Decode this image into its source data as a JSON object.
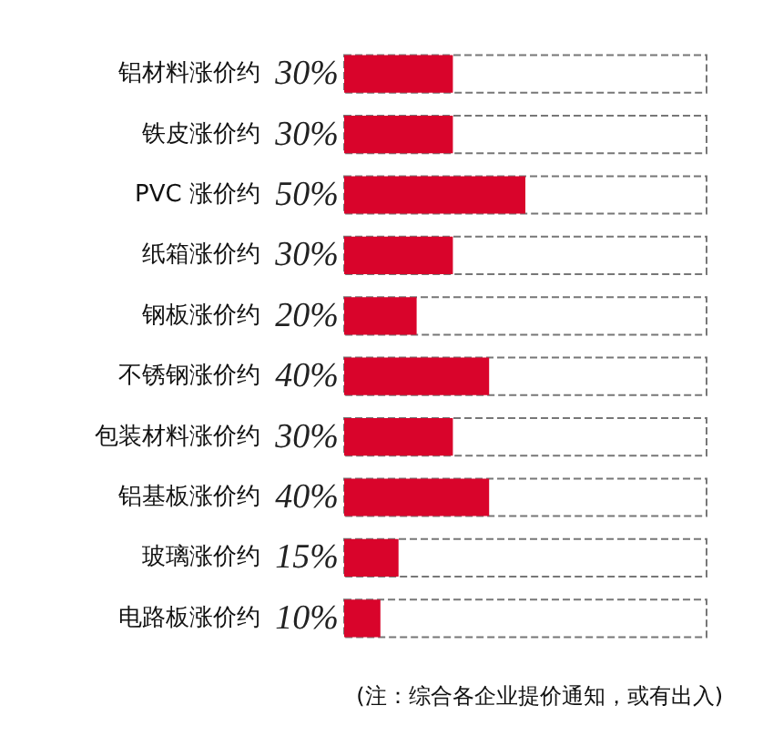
{
  "chart_data": {
    "type": "bar",
    "orientation": "horizontal",
    "categories": [
      "铝材料涨价约",
      "铁皮涨价约",
      "PVC 涨价约",
      "纸箱涨价约",
      "钢板涨价约",
      "不锈钢涨价约",
      "包装材料涨价约",
      "铝基板涨价约",
      "玻璃涨价约",
      "电路板涨价约"
    ],
    "values": [
      30,
      30,
      50,
      30,
      20,
      40,
      30,
      40,
      15,
      10
    ],
    "value_labels": [
      "30%",
      "30%",
      "50%",
      "30%",
      "20%",
      "40%",
      "30%",
      "40%",
      "15%",
      "10%"
    ],
    "color": "#d9042b",
    "xlim": [
      0,
      100
    ],
    "tick_labels": "y",
    "grid": false,
    "annotations": [
      "(注：综合各企业提价通知，或有出入)"
    ]
  }
}
